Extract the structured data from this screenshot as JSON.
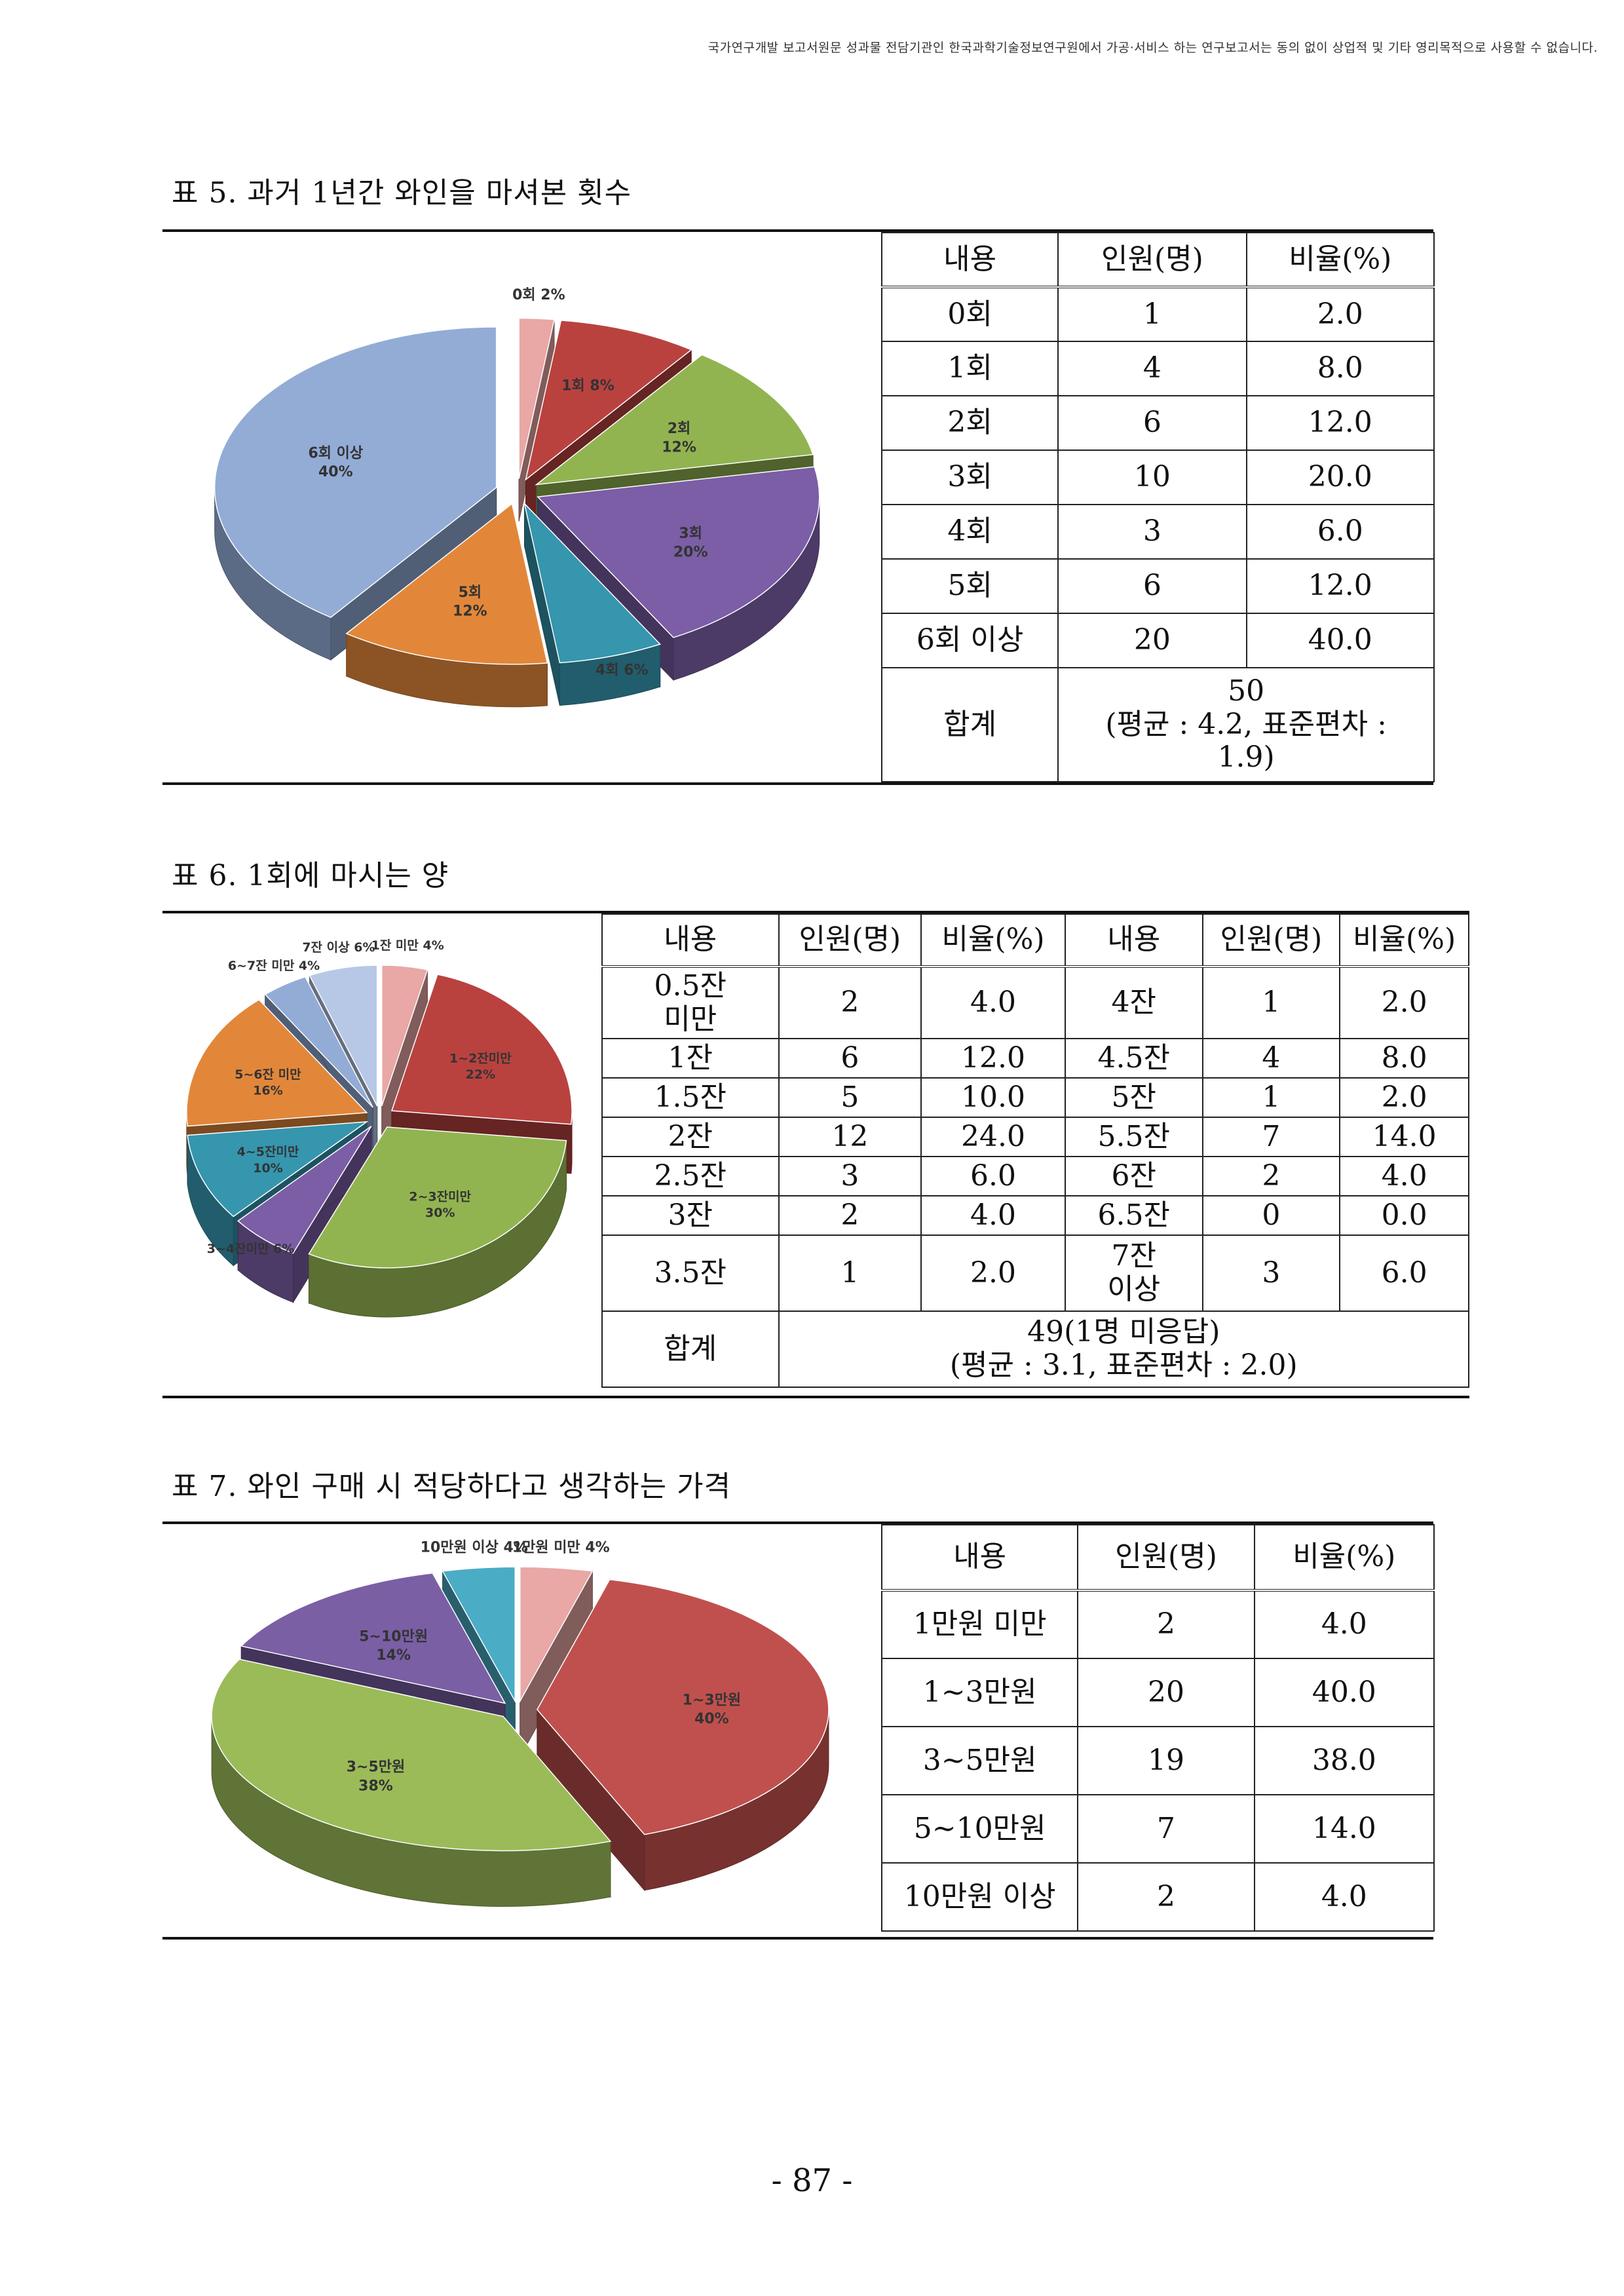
{
  "header_notice": "국가연구개발 보고서원문 성과물 전담기관인 한국과학기술정보연구원에서 가공·서비스 하는 연구보고서는 동의 없이 상업적 및 기타 영리목적으로 사용할 수 없습니다.",
  "page_number": "- 87 -",
  "table5": {
    "caption": "표 5. 과거 1년간 와인을 마셔본 횟수",
    "columns": [
      "내용",
      "인원(명)",
      "비율(%)"
    ],
    "rows": [
      [
        "0회",
        "1",
        "2.0"
      ],
      [
        "1회",
        "4",
        "8.0"
      ],
      [
        "2회",
        "6",
        "12.0"
      ],
      [
        "3회",
        "10",
        "20.0"
      ],
      [
        "4회",
        "3",
        "6.0"
      ],
      [
        "5회",
        "6",
        "12.0"
      ],
      [
        "6회 이상",
        "20",
        "40.0"
      ]
    ],
    "total_label": "합계",
    "total_value_line1": "50",
    "total_value_line2": "(평균 : 4.2, 표준편차 :",
    "total_value_line3": "1.9)"
  },
  "table6": {
    "caption": "표 6. 1회에 마시는 양",
    "columns": [
      "내용",
      "인원(명)",
      "비율(%)",
      "내용",
      "인원(명)",
      "비율(%)"
    ],
    "rows": [
      [
        "0.5잔\n미만",
        "2",
        "4.0",
        "4잔",
        "1",
        "2.0"
      ],
      [
        "1잔",
        "6",
        "12.0",
        "4.5잔",
        "4",
        "8.0"
      ],
      [
        "1.5잔",
        "5",
        "10.0",
        "5잔",
        "1",
        "2.0"
      ],
      [
        "2잔",
        "12",
        "24.0",
        "5.5잔",
        "7",
        "14.0"
      ],
      [
        "2.5잔",
        "3",
        "6.0",
        "6잔",
        "2",
        "4.0"
      ],
      [
        "3잔",
        "2",
        "4.0",
        "6.5잔",
        "0",
        "0.0"
      ],
      [
        "3.5잔",
        "1",
        "2.0",
        "7잔\n이상",
        "3",
        "6.0"
      ]
    ],
    "total_label": "합계",
    "total_value_line1": "49(1명 미응답)",
    "total_value_line2": "(평균 : 3.1, 표준편차 : 2.0)"
  },
  "table7": {
    "caption": "표 7. 와인 구매 시 적당하다고 생각하는 가격",
    "columns": [
      "내용",
      "인원(명)",
      "비율(%)"
    ],
    "rows": [
      [
        "1만원 미만",
        "2",
        "4.0"
      ],
      [
        "1~3만원",
        "20",
        "40.0"
      ],
      [
        "3~5만원",
        "19",
        "38.0"
      ],
      [
        "5~10만원",
        "7",
        "14.0"
      ],
      [
        "10만원 이상",
        "2",
        "4.0"
      ]
    ]
  },
  "chart_data": [
    {
      "type": "pie",
      "title": "",
      "series": [
        {
          "categories": [
            "0회",
            "1회",
            "2회",
            "3회",
            "4회",
            "5회",
            "6회 이상"
          ],
          "values": [
            2,
            8,
            12,
            20,
            6,
            12,
            40
          ]
        }
      ],
      "labels": [
        "0회 2%",
        "1회 8%",
        "2회 12%",
        "3회 20%",
        "4회 6%",
        "5회 12%",
        "6회 이상 40%"
      ],
      "colors": [
        "#e9a7a6",
        "#b9423f",
        "#92b450",
        "#7b5ea6",
        "#3596ae",
        "#e2873a",
        "#93acd6"
      ],
      "style": "3d-exploded"
    },
    {
      "type": "pie",
      "title": "",
      "series": [
        {
          "categories": [
            "1잔 미만",
            "1~2잔미만",
            "2~3잔미만",
            "3~4잔미만",
            "4~5잔미만",
            "5~6잔 미만",
            "6~7잔 미만",
            "7잔 이상"
          ],
          "values": [
            4,
            22,
            30,
            6,
            10,
            16,
            4,
            6
          ]
        }
      ],
      "labels": [
        "1잔 미만 4%",
        "1~2잔미만 22%",
        "2~3잔미만 30%",
        "3~4잔미만 6%",
        "4~5잔미만 10%",
        "5~6잔 미만 16%",
        "6~7잔 미만 4%",
        "7잔 이상 6%"
      ],
      "colors": [
        "#e9a7a6",
        "#b9423f",
        "#92b450",
        "#7b5ea6",
        "#3596ae",
        "#e2873a",
        "#93acd6",
        "#b7c8e6"
      ],
      "style": "3d-exploded"
    },
    {
      "type": "pie",
      "title": "",
      "series": [
        {
          "categories": [
            "1만원 미만",
            "1~3만원",
            "3~5만원",
            "5~10만원",
            "10만원 이상"
          ],
          "values": [
            4,
            40,
            38,
            14,
            4
          ]
        }
      ],
      "labels": [
        "1만원 미만 4%",
        "1~3만원 40%",
        "3~5만원 38%",
        "5~10만원 14%",
        "10만원 이상 4%"
      ],
      "colors": [
        "#e9a7a6",
        "#c0504d",
        "#9bbb59",
        "#7a5fa5",
        "#4bacc6"
      ],
      "style": "3d-exploded"
    }
  ]
}
